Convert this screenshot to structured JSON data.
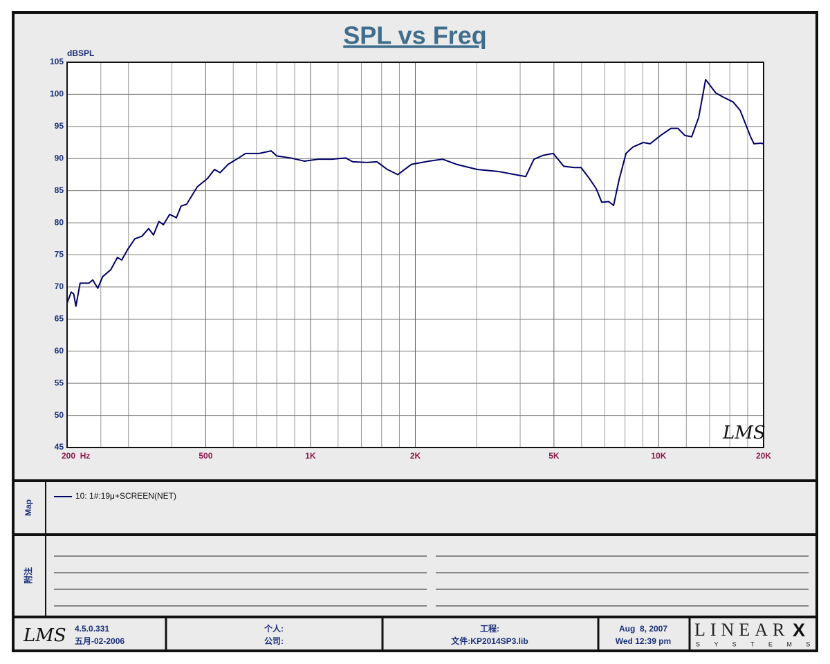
{
  "chart_data": {
    "type": "line",
    "title": "SPL vs Freq",
    "ylabel": "dBSPL",
    "logx": true,
    "grid": true,
    "xlim": [
      200,
      20000
    ],
    "ylim": [
      45,
      105
    ],
    "xticks": [
      {
        "value": 200,
        "label": "200  Hz"
      },
      500,
      {
        "value": 1000,
        "label": "1K"
      },
      {
        "value": 2000,
        "label": "2K"
      },
      {
        "value": 5000,
        "label": "5K"
      },
      {
        "value": 10000,
        "label": "10K"
      },
      {
        "value": 20000,
        "label": "20K"
      }
    ],
    "xgrid": [
      250,
      300,
      400,
      600,
      700,
      800,
      900,
      1200,
      1400,
      1600,
      1800,
      3000,
      4000,
      6000,
      7000,
      8000,
      9000,
      12000,
      14000,
      16000,
      18000
    ],
    "yticks": [
      45,
      50,
      55,
      60,
      65,
      70,
      75,
      80,
      85,
      90,
      95,
      100,
      105
    ],
    "x": [
      200,
      205.5,
      209,
      212,
      218,
      231,
      237,
      245,
      253,
      267,
      279,
      287,
      299,
      313,
      328,
      343,
      354,
      367,
      378,
      394,
      412,
      425,
      441,
      473,
      506,
      530,
      550,
      580,
      622,
      651,
      713,
      771,
      800,
      876,
      960,
      1052,
      1153,
      1263,
      1322,
      1449,
      1552,
      1662,
      1781,
      1950,
      2186,
      2396,
      2625,
      3011,
      3455,
      3874,
      4149,
      4382,
      4652,
      4980,
      5334,
      5714,
      5981,
      6320,
      6614,
      6860,
      7184,
      7418,
      7692,
      8052,
      8430,
      9026,
      9449,
      10120,
      10840,
      11350,
      11880,
      12430,
      13020,
      13630,
      14590,
      15280,
      16360,
      17130,
      18350,
      18770,
      19640,
      20000
    ],
    "series": [
      {
        "name": "10: 1#:19μ+SCREEN(NET)",
        "color": "#000066",
        "values": [
          67.5,
          69.2,
          68.9,
          67.0,
          70.6,
          70.6,
          71.1,
          69.8,
          71.6,
          72.7,
          74.6,
          74.2,
          75.9,
          77.5,
          77.9,
          79.1,
          78.1,
          80.2,
          79.7,
          81.3,
          80.8,
          82.6,
          82.9,
          85.6,
          86.9,
          88.3,
          87.8,
          89.1,
          90.1,
          90.8,
          90.8,
          91.2,
          90.4,
          90.1,
          89.6,
          89.9,
          89.9,
          90.1,
          89.5,
          89.4,
          89.5,
          88.3,
          87.5,
          89.1,
          89.6,
          89.9,
          89.1,
          88.3,
          88.0,
          87.5,
          87.2,
          89.9,
          90.5,
          90.8,
          88.8,
          88.6,
          88.6,
          86.9,
          85.3,
          83.2,
          83.3,
          82.7,
          86.7,
          90.8,
          91.8,
          92.5,
          92.3,
          93.6,
          94.7,
          94.7,
          93.6,
          93.4,
          96.4,
          102.3,
          100.2,
          99.6,
          98.8,
          97.5,
          93.4,
          92.3,
          92.4,
          92.3
        ]
      }
    ]
  },
  "panels": {
    "map": "Map",
    "notes": "附注"
  },
  "footer": {
    "logo": "LMS",
    "version": "4.5.0.331",
    "build_date": "五月-02-2006",
    "person": "个人:",
    "company": "公司:",
    "project": "工程:",
    "file": "文件:KP2014SP3.lib",
    "date": "Aug  8, 2007",
    "time": "Wed 12:39 pm",
    "brand": "LINEAR",
    "brand_x": "X",
    "brand_sub": "S Y S T E M S"
  }
}
